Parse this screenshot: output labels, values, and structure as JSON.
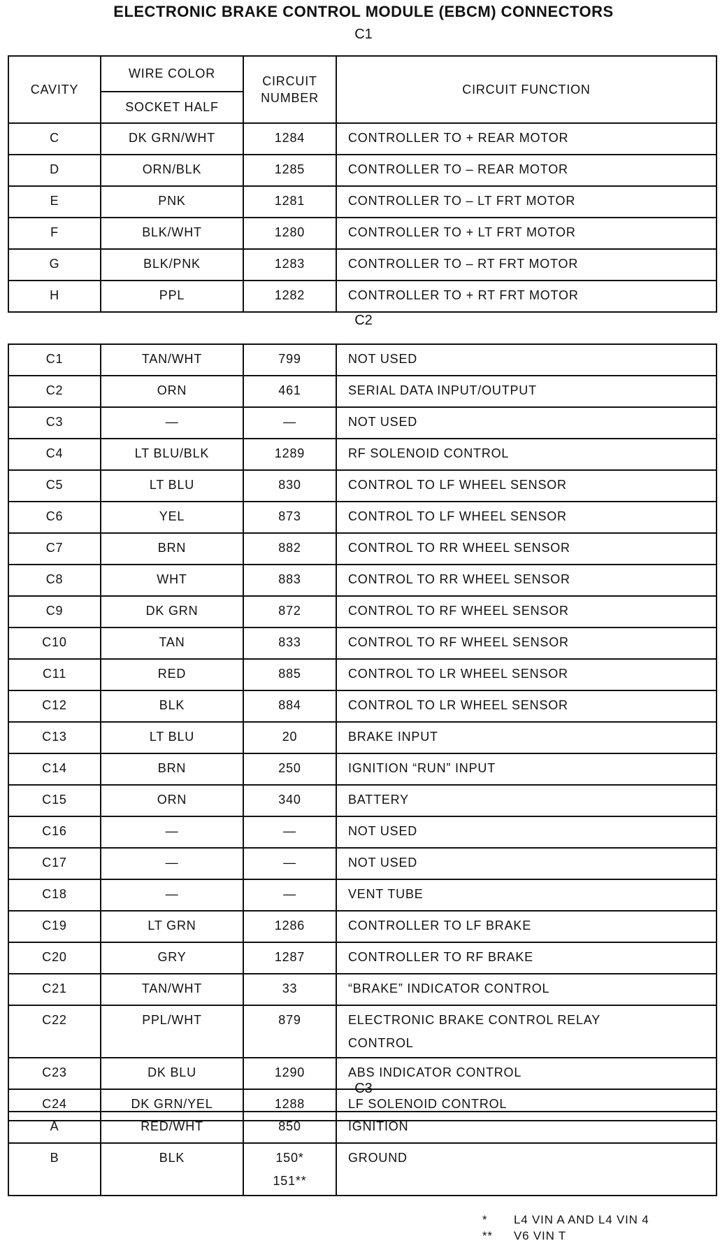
{
  "title": "ELECTRONIC BRAKE CONTROL MODULE (EBCM) CONNECTORS",
  "headers": {
    "cavity": "CAVITY",
    "wire_color": "WIRE COLOR",
    "socket_half": "SOCKET HALF",
    "circuit_number": "CIRCUIT NUMBER",
    "circuit_function": "CIRCUIT FUNCTION"
  },
  "connectors": [
    {
      "label": "C1",
      "rows": [
        {
          "cavity": "C",
          "color": "DK GRN/WHT",
          "circuit": [
            "1284"
          ],
          "function": [
            "CONTROLLER TO + REAR MOTOR"
          ]
        },
        {
          "cavity": "D",
          "color": "ORN/BLK",
          "circuit": [
            "1285"
          ],
          "function": [
            "CONTROLLER TO – REAR MOTOR"
          ]
        },
        {
          "cavity": "E",
          "color": "PNK",
          "circuit": [
            "1281"
          ],
          "function": [
            "CONTROLLER TO – LT FRT MOTOR"
          ]
        },
        {
          "cavity": "F",
          "color": "BLK/WHT",
          "circuit": [
            "1280"
          ],
          "function": [
            "CONTROLLER TO + LT FRT MOTOR"
          ]
        },
        {
          "cavity": "G",
          "color": "BLK/PNK",
          "circuit": [
            "1283"
          ],
          "function": [
            "CONTROLLER TO – RT FRT MOTOR"
          ]
        },
        {
          "cavity": "H",
          "color": "PPL",
          "circuit": [
            "1282"
          ],
          "function": [
            "CONTROLLER TO + RT FRT MOTOR"
          ]
        }
      ]
    },
    {
      "label": "C2",
      "rows": [
        {
          "cavity": "C1",
          "color": "TAN/WHT",
          "circuit": [
            "799"
          ],
          "function": [
            "NOT USED"
          ]
        },
        {
          "cavity": "C2",
          "color": "ORN",
          "circuit": [
            "461"
          ],
          "function": [
            "SERIAL DATA INPUT/OUTPUT"
          ]
        },
        {
          "cavity": "C3",
          "color": "—",
          "circuit": [
            "—"
          ],
          "function": [
            "NOT USED"
          ]
        },
        {
          "cavity": "C4",
          "color": "LT BLU/BLK",
          "circuit": [
            "1289"
          ],
          "function": [
            "RF SOLENOID CONTROL"
          ]
        },
        {
          "cavity": "C5",
          "color": "LT BLU",
          "circuit": [
            "830"
          ],
          "function": [
            "CONTROL TO LF WHEEL SENSOR"
          ]
        },
        {
          "cavity": "C6",
          "color": "YEL",
          "circuit": [
            "873"
          ],
          "function": [
            "CONTROL TO LF WHEEL SENSOR"
          ]
        },
        {
          "cavity": "C7",
          "color": "BRN",
          "circuit": [
            "882"
          ],
          "function": [
            "CONTROL TO RR WHEEL SENSOR"
          ]
        },
        {
          "cavity": "C8",
          "color": "WHT",
          "circuit": [
            "883"
          ],
          "function": [
            "CONTROL TO RR WHEEL SENSOR"
          ]
        },
        {
          "cavity": "C9",
          "color": "DK GRN",
          "circuit": [
            "872"
          ],
          "function": [
            "CONTROL TO RF WHEEL SENSOR"
          ]
        },
        {
          "cavity": "C10",
          "color": "TAN",
          "circuit": [
            "833"
          ],
          "function": [
            "CONTROL TO RF WHEEL SENSOR"
          ]
        },
        {
          "cavity": "C11",
          "color": "RED",
          "circuit": [
            "885"
          ],
          "function": [
            "CONTROL TO LR WHEEL SENSOR"
          ]
        },
        {
          "cavity": "C12",
          "color": "BLK",
          "circuit": [
            "884"
          ],
          "function": [
            "CONTROL TO LR WHEEL SENSOR"
          ]
        },
        {
          "cavity": "C13",
          "color": "LT BLU",
          "circuit": [
            "20"
          ],
          "function": [
            "BRAKE INPUT"
          ]
        },
        {
          "cavity": "C14",
          "color": "BRN",
          "circuit": [
            "250"
          ],
          "function": [
            "IGNITION “RUN” INPUT"
          ]
        },
        {
          "cavity": "C15",
          "color": "ORN",
          "circuit": [
            "340"
          ],
          "function": [
            "BATTERY"
          ]
        },
        {
          "cavity": "C16",
          "color": "—",
          "circuit": [
            "—"
          ],
          "function": [
            "NOT USED"
          ]
        },
        {
          "cavity": "C17",
          "color": "—",
          "circuit": [
            "—"
          ],
          "function": [
            "NOT USED"
          ]
        },
        {
          "cavity": "C18",
          "color": "—",
          "circuit": [
            "—"
          ],
          "function": [
            "VENT TUBE"
          ]
        },
        {
          "cavity": "C19",
          "color": "LT GRN",
          "circuit": [
            "1286"
          ],
          "function": [
            "CONTROLLER TO LF BRAKE"
          ]
        },
        {
          "cavity": "C20",
          "color": "GRY",
          "circuit": [
            "1287"
          ],
          "function": [
            "CONTROLLER TO RF BRAKE"
          ]
        },
        {
          "cavity": "C21",
          "color": "TAN/WHT",
          "circuit": [
            "33"
          ],
          "function": [
            "“BRAKE” INDICATOR CONTROL"
          ]
        },
        {
          "cavity": "C22",
          "color": "PPL/WHT",
          "circuit": [
            "879"
          ],
          "function": [
            "ELECTRONIC BRAKE CONTROL RELAY",
            "CONTROL"
          ]
        },
        {
          "cavity": "C23",
          "color": "DK BLU",
          "circuit": [
            "1290"
          ],
          "function": [
            "ABS INDICATOR CONTROL"
          ]
        },
        {
          "cavity": "C24",
          "color": "DK GRN/YEL",
          "circuit": [
            "1288"
          ],
          "function": [
            "LF SOLENOID CONTROL"
          ]
        }
      ]
    },
    {
      "label": "C3",
      "rows": [
        {
          "cavity": "A",
          "color": "RED/WHT",
          "circuit": [
            "850"
          ],
          "function": [
            "IGNITION"
          ]
        },
        {
          "cavity": "B",
          "color": "BLK",
          "circuit": [
            "150*",
            "151**"
          ],
          "function": [
            "GROUND"
          ]
        }
      ]
    }
  ],
  "footnotes": [
    {
      "mark": "*",
      "text": "L4 VIN A AND L4 VIN 4"
    },
    {
      "mark": "**",
      "text": "V6 VIN T"
    }
  ]
}
